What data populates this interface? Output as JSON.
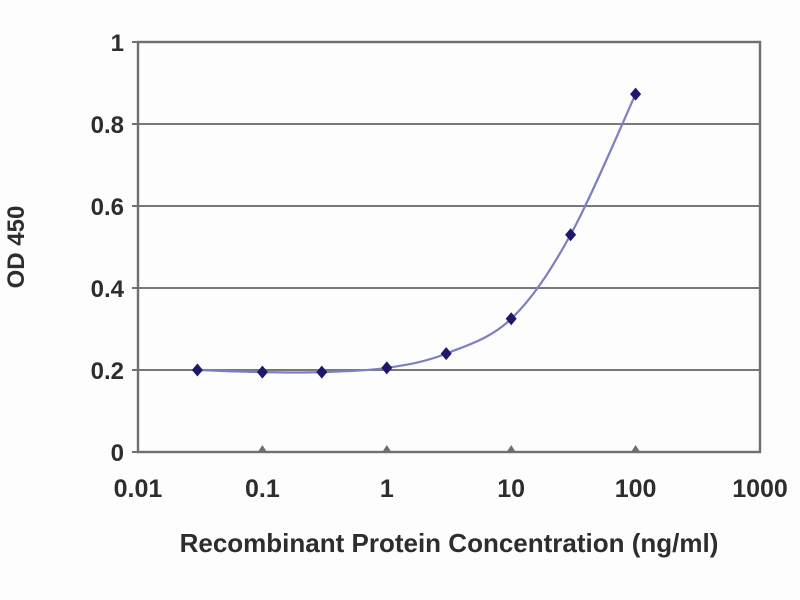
{
  "chart_data": {
    "type": "line",
    "title": "",
    "xlabel": "Recombinant Protein Concentration (ng/ml)",
    "ylabel": "OD 450",
    "x_scale": "log",
    "xlim": [
      0.01,
      1000
    ],
    "ylim": [
      0,
      1
    ],
    "x_ticks": [
      0.01,
      0.1,
      1,
      10,
      100,
      1000
    ],
    "x_tick_labels": [
      "0.01",
      "0.1",
      "1",
      "10",
      "100",
      "1000"
    ],
    "y_ticks": [
      0,
      0.2,
      0.4,
      0.6,
      0.8,
      1
    ],
    "y_tick_labels": [
      "0",
      "0.2",
      "0.4",
      "0.6",
      "0.8",
      "1"
    ],
    "grid": true,
    "legend": false,
    "series": [
      {
        "name": "OD 450",
        "marker": "diamond",
        "x": [
          0.03,
          0.1,
          0.3,
          1,
          3,
          10,
          30,
          100
        ],
        "y": [
          0.2,
          0.195,
          0.195,
          0.205,
          0.24,
          0.325,
          0.53,
          0.873
        ]
      }
    ],
    "colors": {
      "grid": "#787878",
      "frame": "#6f6f6f",
      "text": "#2d2d2d",
      "line": "#7e7ec2",
      "marker": "#1e176b",
      "background": "#fdfdfd"
    }
  }
}
